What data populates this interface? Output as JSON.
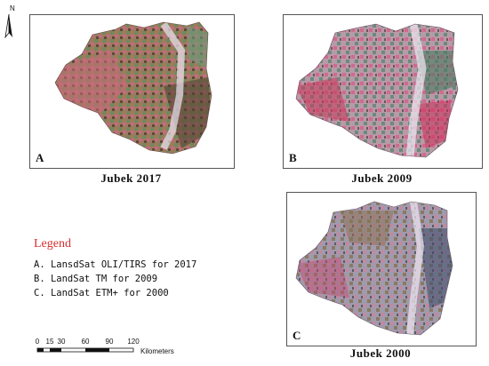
{
  "north_arrow": {
    "label": "N",
    "icon": "north-arrow-icon"
  },
  "panels": [
    {
      "id": "A",
      "letter": "A",
      "caption": "Jubek 2017"
    },
    {
      "id": "B",
      "letter": "B",
      "caption": "Jubek 2009"
    },
    {
      "id": "C",
      "letter": "C",
      "caption": "Jubek 2000"
    }
  ],
  "legend": {
    "title": "Legend",
    "title_color": "#d62e2e",
    "items": [
      "A. LansdSat OLI/TIRS for 2017",
      "B. LandSat TM for 2009",
      "C. LandSat ETM+ for 2000"
    ]
  },
  "scale_bar": {
    "ticks": [
      "0",
      "15",
      "30",
      "60",
      "90",
      "120"
    ],
    "unit": "Kilometers"
  },
  "colors": {
    "pink": "#d0608c",
    "green": "#6f8a5a",
    "brown": "#8a6d52",
    "bluegray": "#8b90a6"
  }
}
